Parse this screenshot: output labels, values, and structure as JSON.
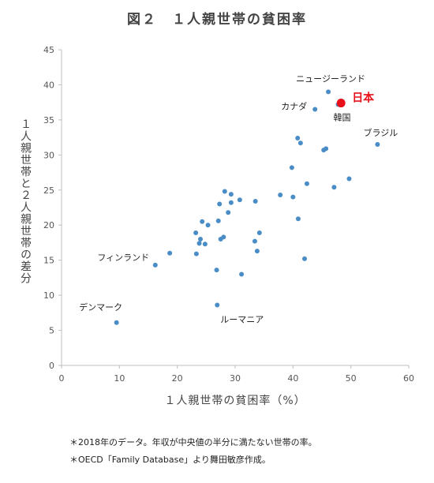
{
  "title": "図２　１人親世帯の貧困率",
  "notes": [
    "＊2018年のデータ。年収が中央値の半分に満たない世帯の率。",
    "＊OECD「Family Database」より舞田敏彦作成。"
  ],
  "colors": {
    "point": "#4a8dc6",
    "highlight": "#e8101a",
    "axis": "#bfbfbf"
  },
  "chart_data": {
    "type": "scatter",
    "title": "図２　１人親世帯の貧困率",
    "xlabel": "１人親世帯の貧困率（%）",
    "ylabel": "１人親世帯と２人親世帯の差分",
    "xlim": [
      0,
      60
    ],
    "ylim": [
      0,
      45
    ],
    "xticks": [
      0,
      10,
      20,
      30,
      40,
      50,
      60
    ],
    "yticks": [
      0,
      5,
      10,
      15,
      20,
      25,
      30,
      35,
      40,
      45
    ],
    "grid": false,
    "points": [
      {
        "x": 9.5,
        "y": 6.1,
        "label": "デンマーク"
      },
      {
        "x": 16.2,
        "y": 14.3
      },
      {
        "x": 18.7,
        "y": 16.0,
        "label": "フィンランド"
      },
      {
        "x": 23.2,
        "y": 18.9
      },
      {
        "x": 23.3,
        "y": 15.9
      },
      {
        "x": 23.8,
        "y": 17.4
      },
      {
        "x": 24.0,
        "y": 18.0
      },
      {
        "x": 24.3,
        "y": 20.5
      },
      {
        "x": 24.8,
        "y": 17.3
      },
      {
        "x": 25.3,
        "y": 20.0
      },
      {
        "x": 26.8,
        "y": 13.6
      },
      {
        "x": 26.9,
        "y": 8.6,
        "label": "ルーマニア"
      },
      {
        "x": 27.1,
        "y": 20.6
      },
      {
        "x": 27.3,
        "y": 23.0
      },
      {
        "x": 27.5,
        "y": 18.0
      },
      {
        "x": 28.0,
        "y": 18.3
      },
      {
        "x": 28.2,
        "y": 24.8
      },
      {
        "x": 28.8,
        "y": 21.8
      },
      {
        "x": 29.3,
        "y": 24.4
      },
      {
        "x": 29.3,
        "y": 23.2
      },
      {
        "x": 30.8,
        "y": 23.6
      },
      {
        "x": 31.1,
        "y": 13.0
      },
      {
        "x": 33.4,
        "y": 17.7
      },
      {
        "x": 33.5,
        "y": 23.4
      },
      {
        "x": 33.8,
        "y": 16.3
      },
      {
        "x": 34.2,
        "y": 18.9
      },
      {
        "x": 37.8,
        "y": 24.3
      },
      {
        "x": 39.8,
        "y": 28.2
      },
      {
        "x": 40.0,
        "y": 24.0
      },
      {
        "x": 40.8,
        "y": 32.4
      },
      {
        "x": 40.9,
        "y": 20.9
      },
      {
        "x": 41.3,
        "y": 31.7
      },
      {
        "x": 42.0,
        "y": 15.2
      },
      {
        "x": 42.4,
        "y": 25.9
      },
      {
        "x": 43.8,
        "y": 36.5,
        "label": "カナダ"
      },
      {
        "x": 45.3,
        "y": 30.7
      },
      {
        "x": 45.7,
        "y": 30.9
      },
      {
        "x": 46.1,
        "y": 39.0,
        "label": "ニュージーランド"
      },
      {
        "x": 47.1,
        "y": 25.4
      },
      {
        "x": 47.8,
        "y": 37.2,
        "label": "韓国"
      },
      {
        "x": 48.3,
        "y": 37.4,
        "label": "日本",
        "highlight": true
      },
      {
        "x": 49.7,
        "y": 26.6
      },
      {
        "x": 54.6,
        "y": 31.5,
        "label": "ブラジル"
      }
    ]
  }
}
